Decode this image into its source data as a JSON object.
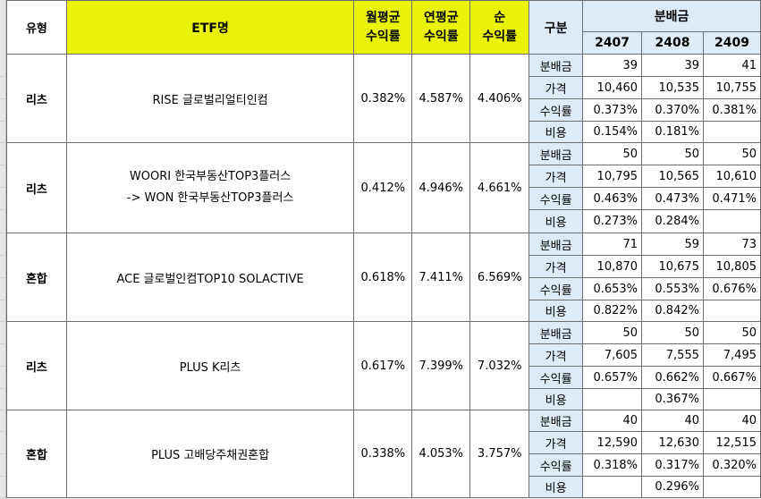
{
  "header": {
    "type": "유형",
    "etf_name": "ETF명",
    "monthly_l1": "월평균",
    "monthly_l2": "수익률",
    "annual_l1": "연평균",
    "annual_l2": "수익률",
    "net_l1": "순",
    "net_l2": "수익률",
    "category": "구분",
    "distribution": "분배금",
    "months": [
      "2407",
      "2408",
      "2409"
    ]
  },
  "colors": {
    "yellow_header": "#ebf20a",
    "blue_header": "#dcebf7",
    "border": "#6e6e6e"
  },
  "etfs": [
    {
      "type": "리츠",
      "name_lines": [
        "RISE 글로벌리얼티인컴"
      ],
      "monthly": "0.382%",
      "annual": "4.587%",
      "net": "4.406%",
      "rows": [
        {
          "label": "분배금",
          "values": [
            "39",
            "39",
            "41"
          ]
        },
        {
          "label": "가격",
          "values": [
            "10,460",
            "10,535",
            "10,755"
          ]
        },
        {
          "label": "수익률",
          "values": [
            "0.373%",
            "0.370%",
            "0.381%"
          ]
        },
        {
          "label": "비용",
          "values": [
            "0.154%",
            "0.181%",
            ""
          ]
        }
      ]
    },
    {
      "type": "리츠",
      "name_lines": [
        "WOORI 한국부동산TOP3플러스",
        "-> WON 한국부동산TOP3플러스"
      ],
      "monthly": "0.412%",
      "annual": "4.946%",
      "net": "4.661%",
      "rows": [
        {
          "label": "분배금",
          "values": [
            "50",
            "50",
            "50"
          ]
        },
        {
          "label": "가격",
          "values": [
            "10,795",
            "10,565",
            "10,610"
          ]
        },
        {
          "label": "수익률",
          "values": [
            "0.463%",
            "0.473%",
            "0.471%"
          ]
        },
        {
          "label": "비용",
          "values": [
            "0.273%",
            "0.284%",
            ""
          ]
        }
      ]
    },
    {
      "type": "혼합",
      "name_lines": [
        "ACE 글로벌인컴TOP10 SOLACTIVE"
      ],
      "monthly": "0.618%",
      "annual": "7.411%",
      "net": "6.569%",
      "rows": [
        {
          "label": "분배금",
          "values": [
            "71",
            "59",
            "73"
          ]
        },
        {
          "label": "가격",
          "values": [
            "10,870",
            "10,675",
            "10,805"
          ]
        },
        {
          "label": "수익률",
          "values": [
            "0.653%",
            "0.553%",
            "0.676%"
          ]
        },
        {
          "label": "비용",
          "values": [
            "0.822%",
            "0.842%",
            ""
          ]
        }
      ]
    },
    {
      "type": "리츠",
      "name_lines": [
        "PLUS K리츠"
      ],
      "monthly": "0.617%",
      "annual": "7.399%",
      "net": "7.032%",
      "rows": [
        {
          "label": "분배금",
          "values": [
            "50",
            "50",
            "50"
          ]
        },
        {
          "label": "가격",
          "values": [
            "7,605",
            "7,555",
            "7,495"
          ]
        },
        {
          "label": "수익률",
          "values": [
            "0.657%",
            "0.662%",
            "0.667%"
          ]
        },
        {
          "label": "비용",
          "values": [
            "",
            "0.367%",
            ""
          ]
        }
      ]
    },
    {
      "type": "혼합",
      "name_lines": [
        "PLUS 고배당주채권혼합"
      ],
      "monthly": "0.338%",
      "annual": "4.053%",
      "net": "3.757%",
      "rows": [
        {
          "label": "분배금",
          "values": [
            "40",
            "40",
            "40"
          ]
        },
        {
          "label": "가격",
          "values": [
            "12,590",
            "12,630",
            "12,515"
          ]
        },
        {
          "label": "수익률",
          "values": [
            "0.318%",
            "0.317%",
            "0.320%"
          ]
        },
        {
          "label": "비용",
          "values": [
            "",
            "0.296%",
            ""
          ]
        }
      ]
    }
  ]
}
